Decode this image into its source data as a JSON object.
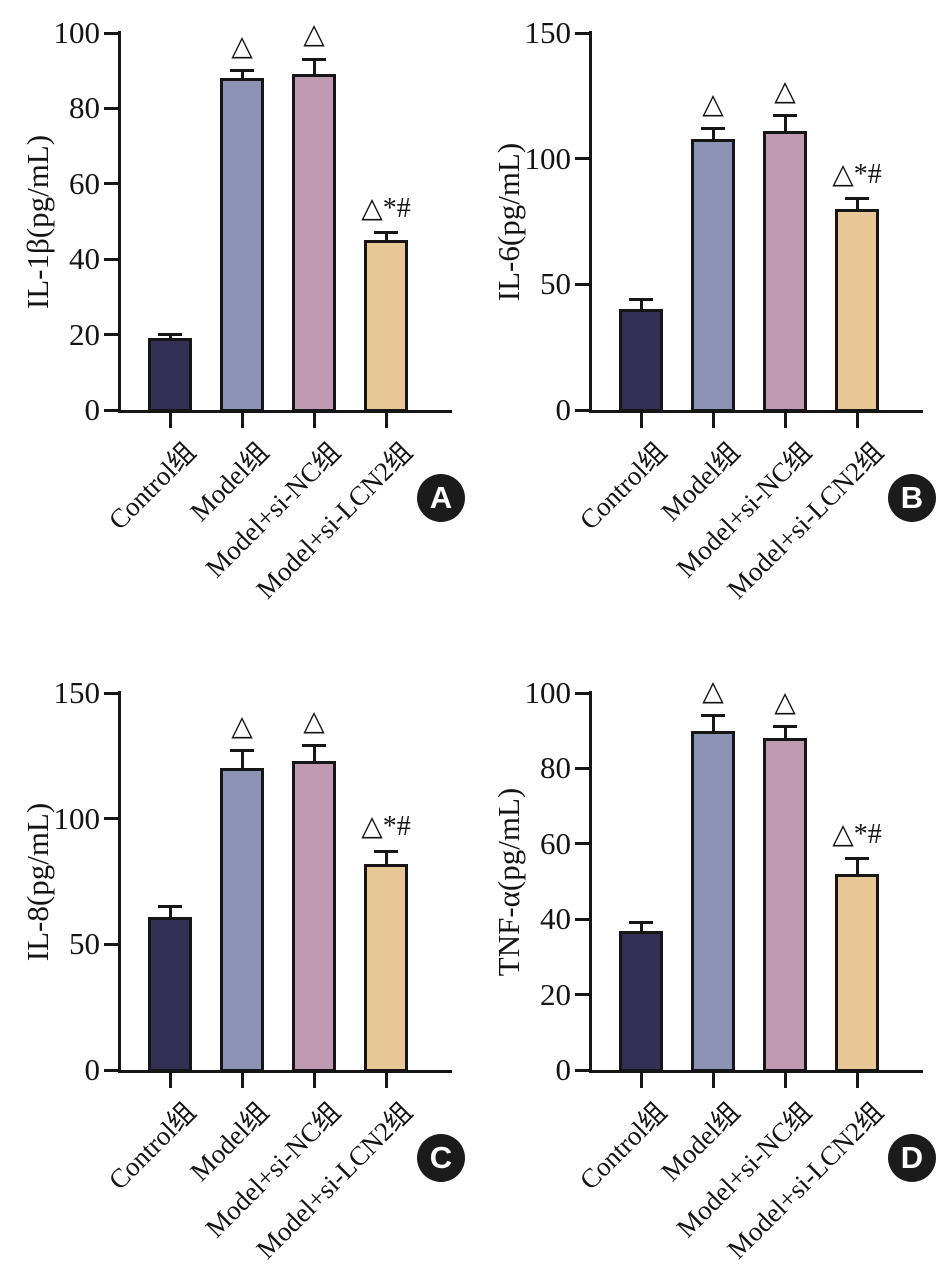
{
  "figure": {
    "background": "#ffffff",
    "axis_color": "#161616",
    "text_color": "#141414",
    "badge_background": "#1b1b1b",
    "badge_text_color": "#ffffff",
    "group_colors": {
      "Control组": "#332f55",
      "Model组": "#8d93b5",
      "Model+si-NC组": "#c09ab0",
      "Model+si-LCN2组": "#e6c795"
    },
    "panel_labels": [
      "A",
      "B",
      "C",
      "D"
    ]
  },
  "chart_data": [
    {
      "type": "bar",
      "panel": "A",
      "title": "",
      "xlabel": "",
      "ylabel": "IL-1β(pg/mL)",
      "categories": [
        "Control组",
        "Model组",
        "Model+si-NC组",
        "Model+si-LCN2组"
      ],
      "values": [
        19,
        88,
        89,
        45
      ],
      "errors": [
        1,
        2,
        4,
        2
      ],
      "error_direction": "upper",
      "annotations": [
        "",
        "△",
        "△",
        "△*#"
      ],
      "ylim": [
        0,
        100
      ],
      "yticks": [
        0,
        20,
        40,
        60,
        80,
        100
      ],
      "bar_colors": [
        "#332f55",
        "#8d93b5",
        "#c09ab0",
        "#e6c795"
      ],
      "legend": "none",
      "grid": false
    },
    {
      "type": "bar",
      "panel": "B",
      "title": "",
      "xlabel": "",
      "ylabel": "IL-6(pg/mL)",
      "categories": [
        "Control组",
        "Model组",
        "Model+si-NC组",
        "Model+si-LCN2组"
      ],
      "values": [
        40,
        108,
        111,
        80
      ],
      "errors": [
        4,
        4,
        6,
        4
      ],
      "error_direction": "upper",
      "annotations": [
        "",
        "△",
        "△",
        "△*#"
      ],
      "ylim": [
        0,
        150
      ],
      "yticks": [
        0,
        50,
        100,
        150
      ],
      "bar_colors": [
        "#332f55",
        "#8d93b5",
        "#c09ab0",
        "#e6c795"
      ],
      "legend": "none",
      "grid": false
    },
    {
      "type": "bar",
      "panel": "C",
      "title": "",
      "xlabel": "",
      "ylabel": "IL-8(pg/mL)",
      "categories": [
        "Control组",
        "Model组",
        "Model+si-NC组",
        "Model+si-LCN2组"
      ],
      "values": [
        61,
        120,
        123,
        82
      ],
      "errors": [
        4,
        7,
        6,
        5
      ],
      "error_direction": "upper",
      "annotations": [
        "",
        "△",
        "△",
        "△*#"
      ],
      "ylim": [
        0,
        150
      ],
      "yticks": [
        0,
        50,
        100,
        150
      ],
      "bar_colors": [
        "#332f55",
        "#8d93b5",
        "#c09ab0",
        "#e6c795"
      ],
      "legend": "none",
      "grid": false
    },
    {
      "type": "bar",
      "panel": "D",
      "title": "",
      "xlabel": "",
      "ylabel": "TNF-α(pg/mL)",
      "categories": [
        "Control组",
        "Model组",
        "Model+si-NC组",
        "Model+si-LCN2组"
      ],
      "values": [
        37,
        90,
        88,
        52
      ],
      "errors": [
        2,
        4,
        3,
        4
      ],
      "error_direction": "upper",
      "annotations": [
        "",
        "△",
        "△",
        "△*#"
      ],
      "ylim": [
        0,
        100
      ],
      "yticks": [
        0,
        20,
        40,
        60,
        80,
        100
      ],
      "bar_colors": [
        "#332f55",
        "#8d93b5",
        "#c09ab0",
        "#e6c795"
      ],
      "legend": "none",
      "grid": false
    }
  ]
}
